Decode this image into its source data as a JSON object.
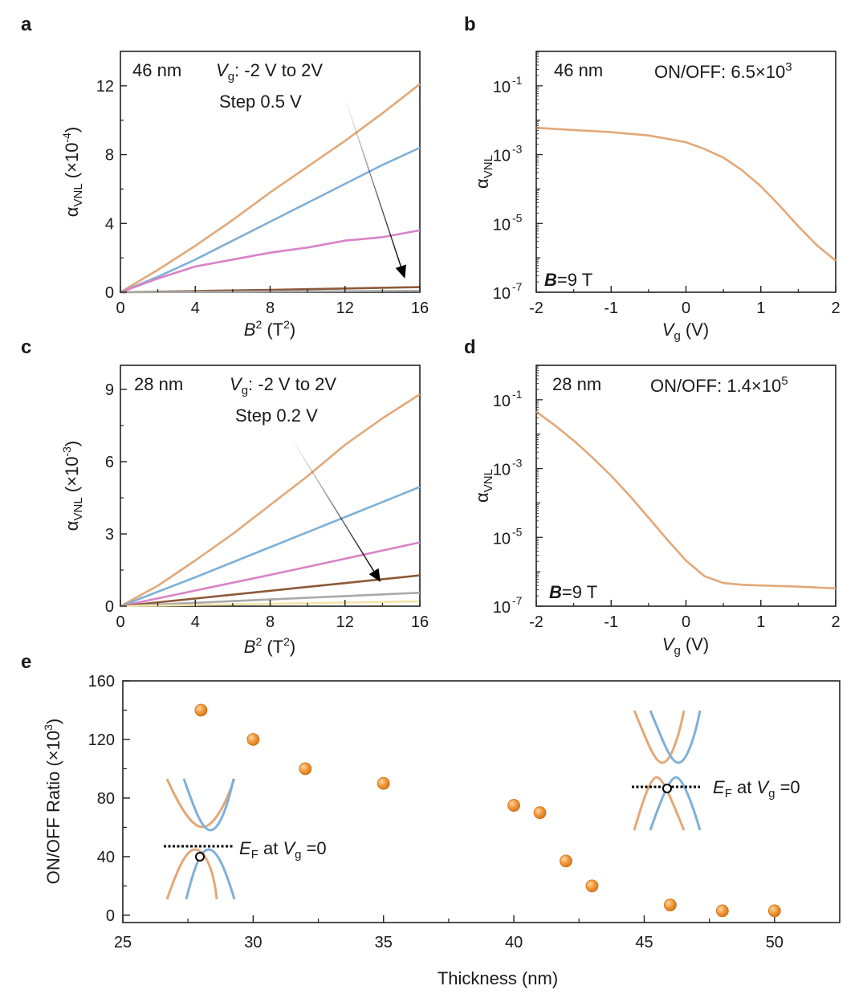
{
  "panels": {
    "a": {
      "letter": "a",
      "annotation": {
        "thickness": "46 nm",
        "vg_label": "V",
        "vg_sub": "g",
        "vg_range": ": -2 V to 2V",
        "step": "Step 0.5 V"
      },
      "ylabel": {
        "alpha": "α",
        "sub": "VNL",
        "unit_pre": " (×10",
        "exp": "-4",
        "unit_post": ")"
      },
      "xlabel": {
        "base": "B",
        "sup": "2",
        "unit_pre": " (T",
        "unit_sup": "2",
        "unit_post": ")"
      },
      "xticks": [
        "0",
        "4",
        "8",
        "12",
        "16"
      ],
      "yticks": [
        "0",
        "4",
        "8",
        "12"
      ]
    },
    "b": {
      "letter": "b",
      "annotation": {
        "thickness": "46 nm",
        "onoff_label": "ON/OFF",
        "onoff_value": "6.5×10",
        "onoff_exp": "3"
      },
      "field": {
        "bold": "B",
        "rest": "=9 T"
      },
      "ylabel": {
        "alpha": "α",
        "sub": "VNL"
      },
      "xlabel": {
        "base": "V",
        "sub": "g",
        "unit": " (V)"
      },
      "xticks": [
        "-2",
        "-1",
        "0",
        "1",
        "2"
      ],
      "yticks": [
        {
          "base": "10",
          "exp": "-1"
        },
        {
          "base": "10",
          "exp": "-3"
        },
        {
          "base": "10",
          "exp": "-5"
        },
        {
          "base": "10",
          "exp": "-7"
        }
      ]
    },
    "c": {
      "letter": "c",
      "annotation": {
        "thickness": "28 nm",
        "vg_label": "V",
        "vg_sub": "g",
        "vg_range": ": -2 V to 2V",
        "step": "Step 0.2 V"
      },
      "ylabel": {
        "alpha": "α",
        "sub": "VNL",
        "unit_pre": " (×10",
        "exp": "-3",
        "unit_post": ")"
      },
      "xlabel": {
        "base": "B",
        "sup": "2",
        "unit_pre": " (T",
        "unit_sup": "2",
        "unit_post": ")"
      },
      "xticks": [
        "0",
        "4",
        "8",
        "12",
        "16"
      ],
      "yticks": [
        "0",
        "3",
        "6",
        "9"
      ]
    },
    "d": {
      "letter": "d",
      "annotation": {
        "thickness": "28 nm",
        "onoff_label": "ON/OFF",
        "onoff_value": "1.4×10",
        "onoff_exp": "5"
      },
      "field": {
        "bold": "B",
        "rest": "=9 T"
      },
      "ylabel": {
        "alpha": "α",
        "sub": "VNL"
      },
      "xlabel": {
        "base": "V",
        "sub": "g",
        "unit": " (V)"
      },
      "xticks": [
        "-2",
        "-1",
        "0",
        "1",
        "2"
      ],
      "yticks": [
        {
          "base": "10",
          "exp": "-1"
        },
        {
          "base": "10",
          "exp": "-3"
        },
        {
          "base": "10",
          "exp": "-5"
        },
        {
          "base": "10",
          "exp": "-7"
        }
      ]
    },
    "e": {
      "letter": "e",
      "ylabel": {
        "pre": "ON/OFF Ratio (×10",
        "exp": "3",
        "post": ")"
      },
      "xlabel": "Thickness (nm)",
      "xticks": [
        "25",
        "30",
        "35",
        "40",
        "45",
        "50"
      ],
      "yticks": [
        "0",
        "40",
        "80",
        "120",
        "160"
      ],
      "ef_label": {
        "E": "E",
        "Esub": "F",
        "mid": " at ",
        "V": "V",
        "Vsub": "g",
        "post": " =0"
      }
    }
  },
  "colors": {
    "orange": "#e3a878",
    "blue": "#7fb0d8",
    "pink": "#d982c8",
    "brown": "#8c5a3a",
    "gray": "#a9a9a9",
    "yellow": "#f3e3a6",
    "dot": "#ef8f2f",
    "dot_edge": "#d07015"
  },
  "chart_data": [
    {
      "type": "line",
      "panel": "a",
      "xlabel": "B^2 (T^2)",
      "ylabel": "α_VNL (×10^-4)",
      "xlim": [
        0,
        16
      ],
      "ylim": [
        0,
        14
      ],
      "series": [
        {
          "name": "Vg=-2 V",
          "color": "orange",
          "x": [
            0,
            2,
            4,
            6,
            8,
            10,
            12,
            14,
            16
          ],
          "y": [
            0,
            1.3,
            2.7,
            4.2,
            5.8,
            7.3,
            8.8,
            10.4,
            12.1
          ]
        },
        {
          "name": "Vg=-1.5 V",
          "color": "blue",
          "x": [
            0,
            2,
            4,
            6,
            8,
            10,
            12,
            14,
            16
          ],
          "y": [
            0,
            0.9,
            1.9,
            3.0,
            4.1,
            5.2,
            6.3,
            7.4,
            8.4
          ]
        },
        {
          "name": "Vg=-1 V",
          "color": "pink",
          "x": [
            0,
            2,
            4,
            6,
            8,
            10,
            12,
            14,
            15,
            16
          ],
          "y": [
            0,
            0.8,
            1.5,
            1.9,
            2.3,
            2.6,
            3.0,
            3.2,
            3.4,
            3.6
          ]
        },
        {
          "name": "Vg=-0.5 V",
          "color": "brown",
          "x": [
            0,
            4,
            8,
            12,
            16
          ],
          "y": [
            0,
            0.07,
            0.14,
            0.22,
            0.3
          ]
        },
        {
          "name": "Vg>=0 V",
          "color": "gray",
          "x": [
            0,
            4,
            8,
            12,
            16
          ],
          "y": [
            0,
            0.02,
            0.04,
            0.06,
            0.08
          ]
        }
      ],
      "arrow": {
        "from": [
          12,
          11.3
        ],
        "to": [
          15.2,
          0.8
        ]
      }
    },
    {
      "type": "line",
      "panel": "b",
      "xlabel": "Vg (V)",
      "ylabel": "α_VNL",
      "yscale": "log",
      "xlim": [
        -2,
        2
      ],
      "ylim": [
        1e-07,
        1
      ],
      "series": [
        {
          "name": "46 nm",
          "color": "orange",
          "x": [
            -2,
            -1.5,
            -1,
            -0.5,
            0,
            0.25,
            0.5,
            0.75,
            1,
            1.25,
            1.5,
            1.75,
            2
          ],
          "y": [
            0.006,
            0.0052,
            0.0045,
            0.0036,
            0.0023,
            0.00145,
            0.00082,
            0.00035,
            0.00012,
            3.3e-05,
            8.3e-06,
            2.3e-06,
            8.3e-07
          ]
        }
      ]
    },
    {
      "type": "line",
      "panel": "c",
      "xlabel": "B^2 (T^2)",
      "ylabel": "α_VNL (×10^-3)",
      "xlim": [
        0,
        16
      ],
      "ylim": [
        0,
        10
      ],
      "series": [
        {
          "name": "Vg=-2 V",
          "color": "orange",
          "x": [
            0,
            2,
            4,
            6,
            8,
            10,
            12,
            14,
            16
          ],
          "y": [
            0,
            0.85,
            1.9,
            3.0,
            4.2,
            5.4,
            6.7,
            7.8,
            8.8
          ]
        },
        {
          "name": "Vg=-1.8 V",
          "color": "blue",
          "x": [
            0,
            4,
            8,
            12,
            16
          ],
          "y": [
            0,
            1.2,
            2.45,
            3.7,
            4.95
          ]
        },
        {
          "name": "Vg=-1.6 V",
          "color": "pink",
          "x": [
            0,
            4,
            8,
            12,
            16
          ],
          "y": [
            0,
            0.65,
            1.3,
            1.97,
            2.65
          ]
        },
        {
          "name": "Vg=-1.4 V",
          "color": "brown",
          "x": [
            0,
            4,
            8,
            12,
            16
          ],
          "y": [
            0,
            0.32,
            0.64,
            0.96,
            1.28
          ]
        },
        {
          "name": "Vg=-1.2 V",
          "color": "gray",
          "x": [
            0,
            4,
            8,
            12,
            16
          ],
          "y": [
            0,
            0.14,
            0.28,
            0.42,
            0.56
          ]
        },
        {
          "name": "Vg=-1.0 V",
          "color": "yellow",
          "x": [
            0,
            4,
            8,
            12,
            16
          ],
          "y": [
            0,
            0.05,
            0.1,
            0.15,
            0.2
          ]
        }
      ],
      "arrow": {
        "from": [
          9.2,
          6.9
        ],
        "to": [
          13.9,
          1.0
        ]
      }
    },
    {
      "type": "line",
      "panel": "d",
      "xlabel": "Vg (V)",
      "ylabel": "α_VNL",
      "yscale": "log",
      "xlim": [
        -2,
        2
      ],
      "ylim": [
        1e-07,
        1
      ],
      "series": [
        {
          "name": "28 nm",
          "color": "orange",
          "x": [
            -2,
            -1.75,
            -1.5,
            -1.25,
            -1,
            -0.75,
            -0.5,
            -0.25,
            0,
            0.25,
            0.5,
            0.75,
            1,
            1.5,
            2
          ],
          "y": [
            0.045,
            0.018,
            0.0065,
            0.0021,
            0.00062,
            0.00016,
            3.7e-05,
            8.6e-06,
            2.1e-06,
            7.4e-07,
            4.7e-07,
            4.2e-07,
            4e-07,
            3.7e-07,
            3.3e-07
          ]
        }
      ]
    },
    {
      "type": "scatter",
      "panel": "e",
      "xlabel": "Thickness (nm)",
      "ylabel": "ON/OFF Ratio (×10^3)",
      "xlim": [
        25,
        52.5
      ],
      "ylim": [
        -5,
        160
      ],
      "x": [
        28,
        30,
        32,
        35,
        40,
        41,
        42,
        43,
        46,
        48,
        50
      ],
      "y": [
        140,
        120,
        100,
        90,
        75,
        70,
        37,
        20,
        7,
        3,
        3
      ]
    }
  ]
}
